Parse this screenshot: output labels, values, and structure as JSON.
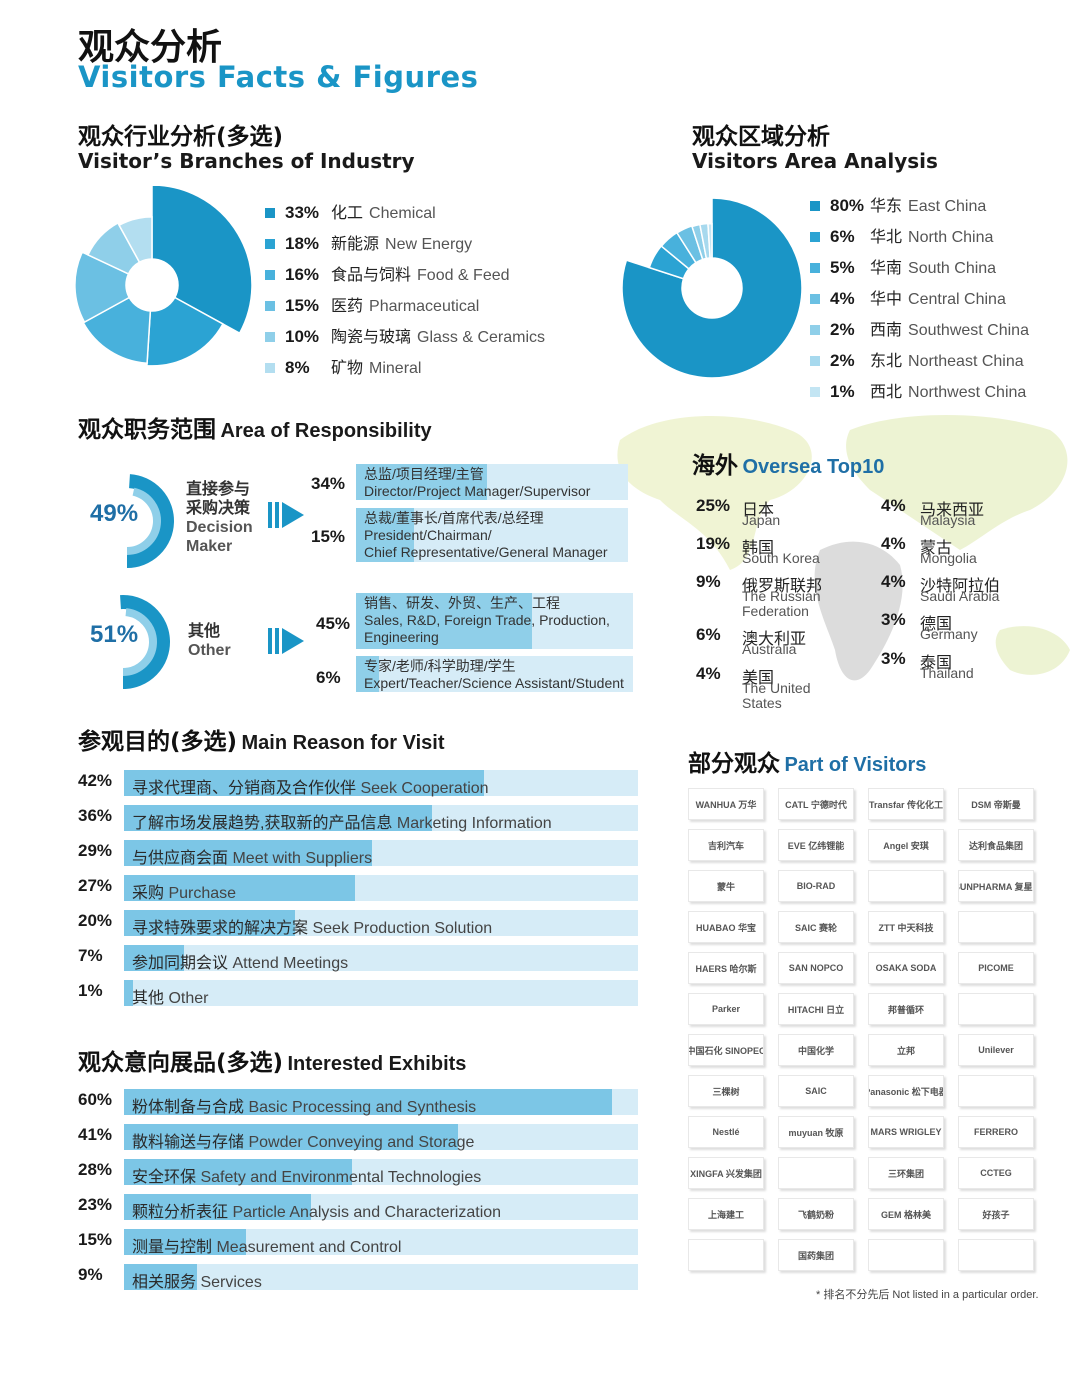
{
  "header": {
    "title_cn": "观众分析",
    "title_en": "Visitors Facts & Figures"
  },
  "industry": {
    "title_cn": "观众行业分析(多选)",
    "title_en": "Visitor’s Branches of Industry",
    "items": [
      {
        "pct": "33%",
        "cn": "化工",
        "en": "Chemical",
        "value": 33,
        "color": "#1a95c6"
      },
      {
        "pct": "18%",
        "cn": "新能源",
        "en": "New Energy",
        "value": 18,
        "color": "#2ba3d3"
      },
      {
        "pct": "16%",
        "cn": "食品与饲料",
        "en": "Food & Feed",
        "value": 16,
        "color": "#48b1dc"
      },
      {
        "pct": "15%",
        "cn": "医药",
        "en": "Pharmaceutical",
        "value": 15,
        "color": "#6bc0e3"
      },
      {
        "pct": "10%",
        "cn": "陶瓷与玻璃",
        "en": "Glass & Ceramics",
        "value": 10,
        "color": "#8fcfe9"
      },
      {
        "pct": "8%",
        "cn": "矿物",
        "en": "Mineral",
        "value": 8,
        "color": "#b3def0"
      }
    ]
  },
  "area": {
    "title_cn": "观众区域分析",
    "title_en": "Visitors Area Analysis",
    "items": [
      {
        "pct": "80%",
        "cn": "华东",
        "en": "East China",
        "value": 80,
        "color": "#1a95c6"
      },
      {
        "pct": "6%",
        "cn": "华北",
        "en": "North China",
        "value": 6,
        "color": "#2ba3d3"
      },
      {
        "pct": "5%",
        "cn": "华南",
        "en": "South China",
        "value": 5,
        "color": "#48b1dc"
      },
      {
        "pct": "4%",
        "cn": "华中",
        "en": "Central China",
        "value": 4,
        "color": "#6bc0e3"
      },
      {
        "pct": "2%",
        "cn": "西南",
        "en": "Southwest China",
        "value": 2,
        "color": "#8fcfe9"
      },
      {
        "pct": "2%",
        "cn": "东北",
        "en": "Northeast China",
        "value": 2,
        "color": "#a7d9ee"
      },
      {
        "pct": "1%",
        "cn": "西北",
        "en": "Northwest China",
        "value": 1,
        "color": "#c3e5f3"
      }
    ]
  },
  "responsibility": {
    "title_cn": "观众职务范围",
    "title_en": "Area of Responsibility",
    "groups": [
      {
        "pct": "49%",
        "value": 49,
        "cn1": "直接参与",
        "cn2": "采购决策",
        "en1": "Decision",
        "en2": "Maker",
        "roles": [
          {
            "pct": "34%",
            "value": 34,
            "cn": "总监/项目经理/主管",
            "en": "Director/Project Manager/Supervisor"
          },
          {
            "pct": "15%",
            "value": 15,
            "cn": "总裁/董事长/首席代表/总经理",
            "en": "President/Chairman/",
            "en2": "Chief Representative/General Manager"
          }
        ]
      },
      {
        "pct": "51%",
        "value": 51,
        "cn1": "其他",
        "en1": "Other",
        "roles": [
          {
            "pct": "45%",
            "value": 45,
            "cn": "销售、研发、外贸、生产、工程",
            "en": "Sales, R&D, Foreign Trade, Production,",
            "en2": "Engineering"
          },
          {
            "pct": "6%",
            "value": 6,
            "cn": "专家/老师/科学助理/学生",
            "en": "Expert/Teacher/Science Assistant/Student"
          }
        ]
      }
    ]
  },
  "reasons": {
    "title_cn": "参观目的(多选)",
    "title_en": "Main Reason for Visit",
    "items": [
      {
        "pct": "42%",
        "value": 42,
        "cn": "寻求代理商、分销商及合作伙伴",
        "en": "Seek Cooperation"
      },
      {
        "pct": "36%",
        "value": 36,
        "cn": "了解市场发展趋势,获取新的产品信息",
        "en": "Marketing Information"
      },
      {
        "pct": "29%",
        "value": 29,
        "cn": "与供应商会面",
        "en": "Meet with Suppliers"
      },
      {
        "pct": "27%",
        "value": 27,
        "cn": "采购",
        "en": "Purchase"
      },
      {
        "pct": "20%",
        "value": 20,
        "cn": "寻求特殊要求的解决方案",
        "en": "Seek Production Solution"
      },
      {
        "pct": "7%",
        "value": 7,
        "cn": "参加同期会议",
        "en": "Attend Meetings"
      },
      {
        "pct": "1%",
        "value": 1,
        "cn": "其他",
        "en": "Other"
      }
    ]
  },
  "exhibits": {
    "title_cn": "观众意向展品(多选)",
    "title_en": "Interested Exhibits",
    "items": [
      {
        "pct": "60%",
        "value": 60,
        "cn": "粉体制备与合成",
        "en": "Basic Processing and Synthesis"
      },
      {
        "pct": "41%",
        "value": 41,
        "cn": "散料输送与存储",
        "en": "Powder Conveying and Storage"
      },
      {
        "pct": "28%",
        "value": 28,
        "cn": "安全环保",
        "en": "Safety and Environmental Technologies"
      },
      {
        "pct": "23%",
        "value": 23,
        "cn": "颗粒分析表征",
        "en": "Particle Analysis and Characterization"
      },
      {
        "pct": "15%",
        "value": 15,
        "cn": "测量与控制",
        "en": "Measurement and Control"
      },
      {
        "pct": "9%",
        "value": 9,
        "cn": "相关服务",
        "en": "Services"
      }
    ]
  },
  "oversea": {
    "title_cn": "海外",
    "title_en": "Oversea Top10",
    "left": [
      {
        "pct": "25%",
        "cn": "日本",
        "en": "Japan"
      },
      {
        "pct": "19%",
        "cn": "韩国",
        "en": "South Korea"
      },
      {
        "pct": "9%",
        "cn": "俄罗斯联邦",
        "en": "The Russian",
        "en2": "Federation"
      },
      {
        "pct": "6%",
        "cn": "澳大利亚",
        "en": "Australia"
      },
      {
        "pct": "4%",
        "cn": "美国",
        "en": "The United",
        "en2": "States"
      }
    ],
    "right": [
      {
        "pct": "4%",
        "cn": "马来西亚",
        "en": "Malaysia"
      },
      {
        "pct": "4%",
        "cn": "蒙古",
        "en": "Mongolia"
      },
      {
        "pct": "4%",
        "cn": "沙特阿拉伯",
        "en": "Saudi Arabia"
      },
      {
        "pct": "3%",
        "cn": "德国",
        "en": "Germany"
      },
      {
        "pct": "3%",
        "cn": "泰国",
        "en": "Thailand"
      }
    ]
  },
  "visitors": {
    "title_cn": "部分观众",
    "title_en": "Part of Visitors",
    "logos": [
      "WANHUA 万华",
      "CATL 宁德时代",
      "Transfar 传化化工",
      "DSM 帝斯曼",
      "吉利汽车",
      "EVE 亿纬锂能",
      "Angel 安琪",
      "达利食品集团",
      "蒙牛",
      "BIO-RAD",
      "",
      "FOSUNPHARMA 复星医药",
      "HUABAO 华宝",
      "SAIC 赛轮",
      "ZTT 中天科技",
      "",
      "HAERS 哈尔斯",
      "SAN NOPCO",
      "OSAKA SODA",
      "PICOME",
      "Parker",
      "HITACHI 日立",
      "邦普循环",
      "",
      "中国石化 SINOPEC",
      "中国化学",
      "立邦",
      "Unilever",
      "三棵树",
      "SAIC",
      "Panasonic 松下电器",
      "",
      "Nestlé",
      "muyuan 牧原",
      "MARS WRIGLEY",
      "FERRERO",
      "XINGFA 兴发集团",
      "",
      "三环集团",
      "CCTEG",
      "上海建工",
      "飞鹤奶粉",
      "GEM 格林美",
      "好孩子",
      "",
      "国药集团",
      "",
      ""
    ],
    "note": "* 排名不分先后 Not listed in a particular order."
  }
}
